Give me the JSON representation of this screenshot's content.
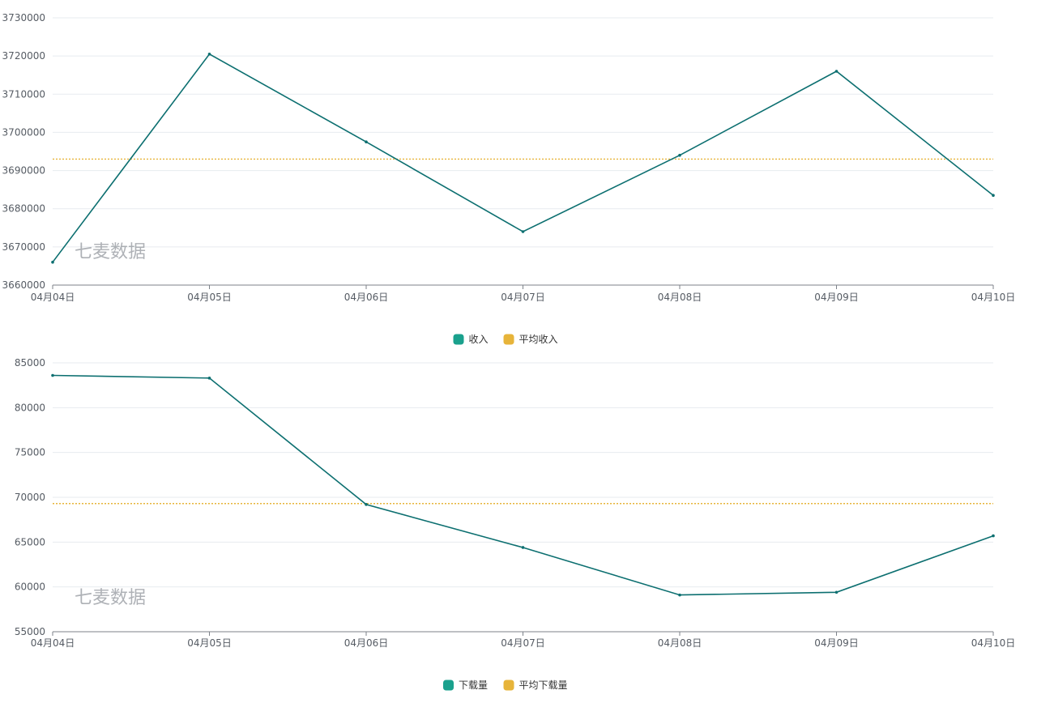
{
  "chart_data": [
    {
      "type": "line",
      "title": "",
      "xlabel": "",
      "ylabel": "",
      "categories": [
        "04月04日",
        "04月05日",
        "04月06日",
        "04月07日",
        "04月08日",
        "04月09日",
        "04月10日"
      ],
      "ylim": [
        3660000,
        3730000
      ],
      "yticks": [
        3660000,
        3670000,
        3680000,
        3690000,
        3700000,
        3710000,
        3720000,
        3730000
      ],
      "ytick_labels": [
        "3660000",
        "3670000",
        "3680000",
        "3690000",
        "3700000",
        "3710000",
        "3720000",
        "3730000"
      ],
      "grid": true,
      "legend_position": "bottom-center",
      "series": [
        {
          "name": "收入",
          "color": "#0c6f70",
          "values": [
            3666000,
            3720500,
            3697500,
            3674000,
            3694000,
            3716000,
            3683500
          ]
        }
      ],
      "reference_lines": [
        {
          "name": "平均收入",
          "color": "#e7b43a",
          "value": 3693000
        }
      ],
      "watermark": "七麦数据"
    },
    {
      "type": "line",
      "title": "",
      "xlabel": "",
      "ylabel": "",
      "categories": [
        "04月04日",
        "04月05日",
        "04月06日",
        "04月07日",
        "04月08日",
        "04月09日",
        "04月10日"
      ],
      "ylim": [
        55000,
        85000
      ],
      "yticks": [
        55000,
        60000,
        65000,
        70000,
        75000,
        80000,
        85000
      ],
      "ytick_labels": [
        "55000",
        "60000",
        "65000",
        "70000",
        "75000",
        "80000",
        "85000"
      ],
      "grid": true,
      "legend_position": "bottom-center",
      "series": [
        {
          "name": "下载量",
          "color": "#0c6f70",
          "values": [
            83600,
            83300,
            69200,
            64400,
            59100,
            59400,
            65700
          ]
        }
      ],
      "reference_lines": [
        {
          "name": "平均下载量",
          "color": "#e7b43a",
          "value": 69300
        }
      ],
      "watermark": "七麦数据"
    }
  ]
}
